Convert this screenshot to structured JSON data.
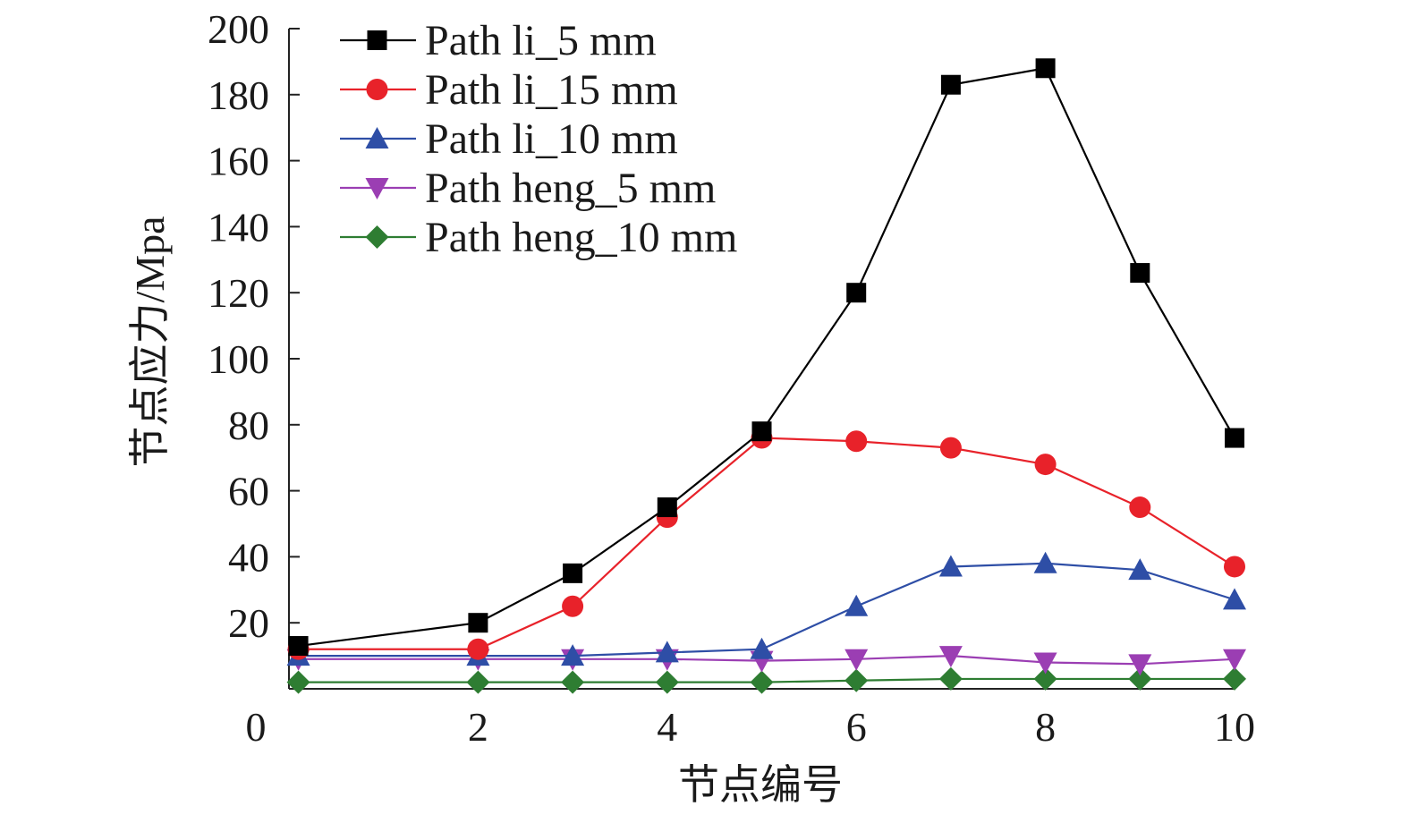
{
  "chart_data": {
    "type": "line",
    "title": "",
    "xlabel": "节点编号",
    "ylabel": "节点应力/Mpa",
    "xlim": [
      0,
      10
    ],
    "ylim": [
      0,
      200
    ],
    "xticks": [
      0,
      2,
      4,
      6,
      8,
      10
    ],
    "yticks": [
      20,
      40,
      60,
      80,
      100,
      120,
      140,
      160,
      180,
      200
    ],
    "x": [
      0.1,
      2,
      3,
      4,
      5,
      6,
      7,
      8,
      9,
      10
    ],
    "legend_position": "top-left",
    "grid": false,
    "series": [
      {
        "name": "Path li_5 mm",
        "marker": "square",
        "color": "#000000",
        "values": [
          13,
          20,
          35,
          55,
          78,
          120,
          183,
          188,
          126,
          76
        ]
      },
      {
        "name": "Path li_15 mm",
        "marker": "circle",
        "color": "#e8222a",
        "values": [
          12,
          12,
          25,
          52,
          76,
          75,
          73,
          68,
          55,
          37
        ]
      },
      {
        "name": "Path li_10 mm",
        "marker": "triangle-up",
        "color": "#2e4ea6",
        "values": [
          10,
          10,
          10,
          11,
          12,
          25,
          37,
          38,
          36,
          27
        ]
      },
      {
        "name": "Path heng_5 mm",
        "marker": "triangle-down",
        "color": "#9b3eb3",
        "values": [
          9,
          9,
          9,
          9,
          8.5,
          9,
          10,
          8,
          7.5,
          9
        ]
      },
      {
        "name": "Path heng_10 mm",
        "marker": "diamond",
        "color": "#2e7d32",
        "values": [
          2,
          2,
          2,
          2,
          2,
          2.5,
          3,
          3,
          3,
          3
        ]
      }
    ]
  }
}
